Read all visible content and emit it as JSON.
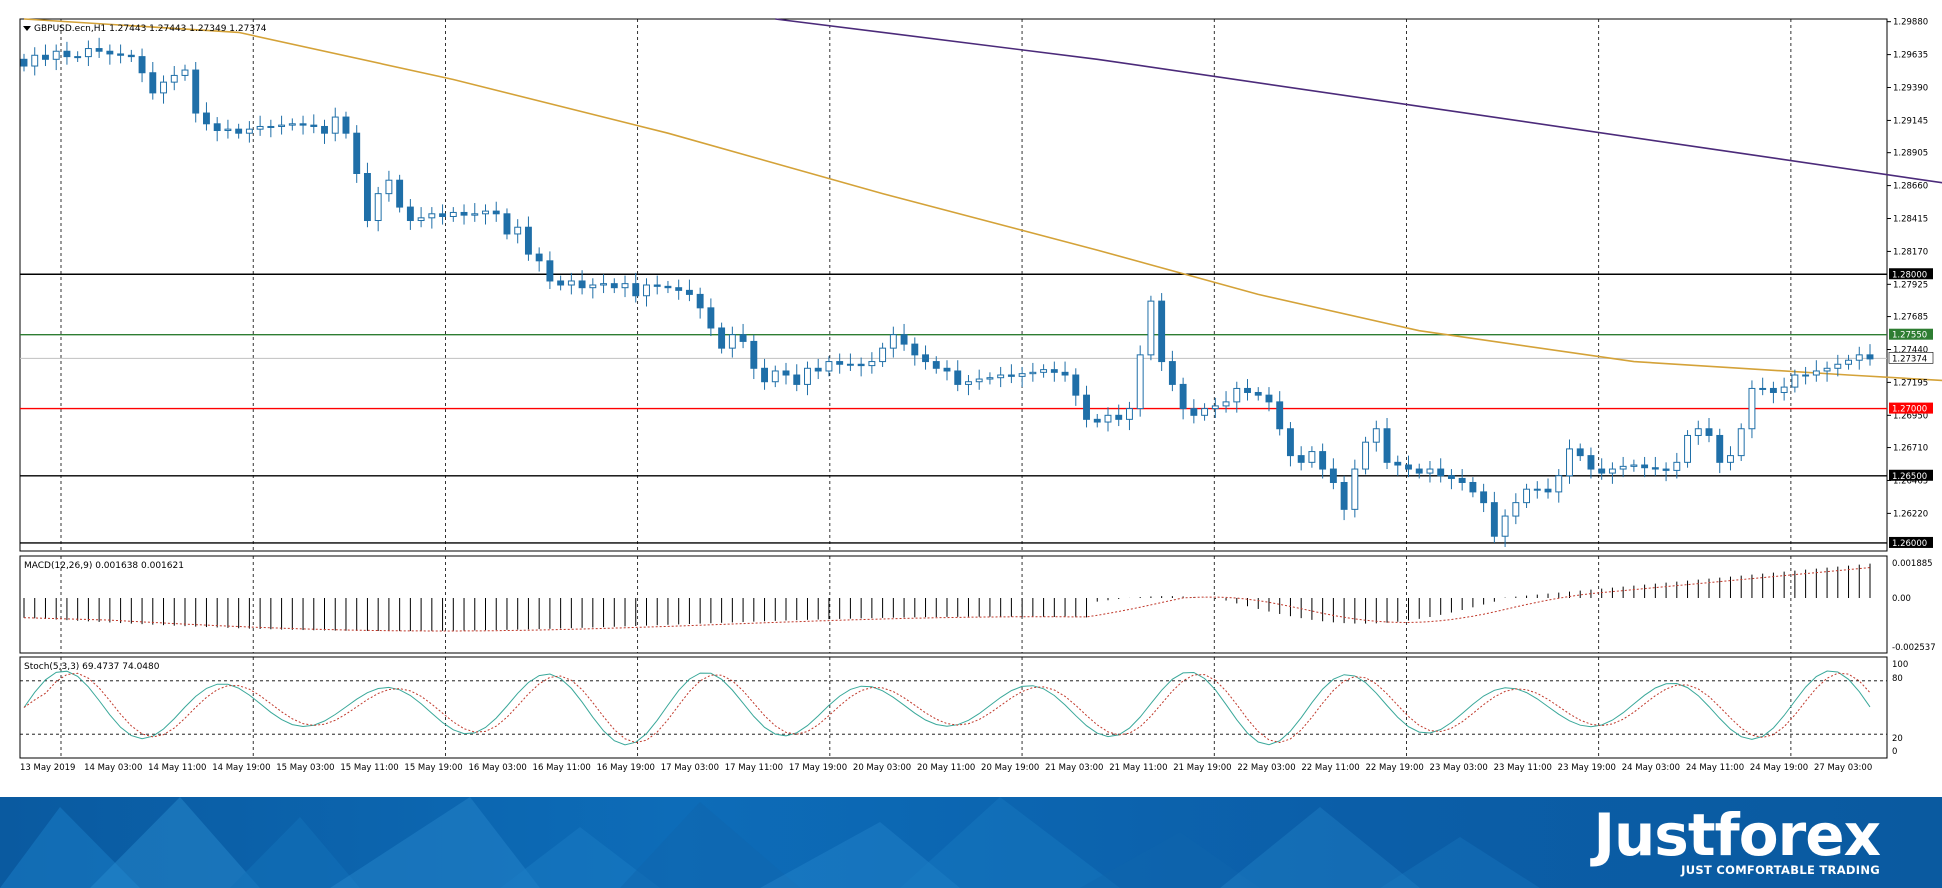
{
  "chart_data": [
    {
      "type": "candlestick",
      "symbol_line": "GBPUSD.ecn,H1  1.27443 1.27443 1.27349 1.27374",
      "ylim": [
        1.2594,
        1.299
      ],
      "y_ticks": [
        "1.29880",
        "1.29635",
        "1.29390",
        "1.29145",
        "1.28905",
        "1.28660",
        "1.28415",
        "1.28170",
        "1.27925",
        "1.27685",
        "1.27440",
        "1.27195",
        "1.26950",
        "1.26710",
        "1.26465",
        "1.26220"
      ],
      "y_tick_values": [
        1.2988,
        1.29635,
        1.2939,
        1.29145,
        1.28905,
        1.2866,
        1.28415,
        1.2817,
        1.27925,
        1.27685,
        1.2744,
        1.27195,
        1.2695,
        1.2671,
        1.26465,
        1.2622
      ],
      "horizontal_levels": [
        {
          "label": "1.28000",
          "value": 1.28,
          "color": "#000000",
          "badge_bg": "#000000"
        },
        {
          "label": "1.27550",
          "value": 1.2755,
          "color": "#2e7d32",
          "badge_bg": "#2e7d32"
        },
        {
          "label": "1.27000",
          "value": 1.27,
          "color": "#ff0000",
          "badge_bg": "#ff0000"
        },
        {
          "label": "1.26500",
          "value": 1.265,
          "color": "#000000",
          "badge_bg": "#000000"
        },
        {
          "label": "1.26000",
          "value": 1.26,
          "color": "#000000",
          "badge_bg": "#000000"
        }
      ],
      "current_price": {
        "label": "1.27374",
        "value": 1.27374
      },
      "candles_close": [
        1.2955,
        1.2963,
        1.296,
        1.2966,
        1.2962,
        1.2962,
        1.2968,
        1.2966,
        1.2964,
        1.2963,
        1.2962,
        1.295,
        1.2935,
        1.2943,
        1.2948,
        1.2952,
        1.292,
        1.2912,
        1.2907,
        1.2908,
        1.2905,
        1.2908,
        1.291,
        1.291,
        1.2911,
        1.2912,
        1.2911,
        1.291,
        1.2905,
        1.2917,
        1.2905,
        1.2875,
        1.284,
        1.286,
        1.287,
        1.285,
        1.284,
        1.2842,
        1.2845,
        1.2843,
        1.2846,
        1.2844,
        1.2845,
        1.2847,
        1.2845,
        1.283,
        1.2835,
        1.2815,
        1.281,
        1.2795,
        1.2792,
        1.2795,
        1.279,
        1.2792,
        1.2793,
        1.279,
        1.2793,
        1.2784,
        1.2792,
        1.2791,
        1.279,
        1.2788,
        1.2785,
        1.2775,
        1.276,
        1.2745,
        1.2755,
        1.275,
        1.273,
        1.272,
        1.2728,
        1.2725,
        1.2718,
        1.273,
        1.2728,
        1.2735,
        1.2733,
        1.2733,
        1.2732,
        1.2735,
        1.2745,
        1.2755,
        1.2748,
        1.274,
        1.2735,
        1.273,
        1.2728,
        1.2718,
        1.272,
        1.2722,
        1.2723,
        1.2725,
        1.2724,
        1.2726,
        1.2727,
        1.2729,
        1.2727,
        1.2725,
        1.271,
        1.2692,
        1.269,
        1.2695,
        1.2692,
        1.27,
        1.274,
        1.278,
        1.2735,
        1.2718,
        1.27,
        1.2695,
        1.27,
        1.2702,
        1.2705,
        1.2715,
        1.2712,
        1.271,
        1.2705,
        1.2685,
        1.2665,
        1.266,
        1.2668,
        1.2655,
        1.2645,
        1.2625,
        1.2655,
        1.2675,
        1.2685,
        1.266,
        1.2658,
        1.2655,
        1.2652,
        1.2655,
        1.265,
        1.2648,
        1.2645,
        1.2638,
        1.263,
        1.2605,
        1.262,
        1.263,
        1.264,
        1.264,
        1.2638,
        1.265,
        1.267,
        1.2665,
        1.2655,
        1.2652,
        1.2655,
        1.2657,
        1.2658,
        1.2656,
        1.2655,
        1.2654,
        1.266,
        1.268,
        1.2685,
        1.268,
        1.266,
        1.2665,
        1.2685,
        1.2715,
        1.2715,
        1.2712,
        1.2716,
        1.2725,
        1.2725,
        1.2728,
        1.273,
        1.2733,
        1.2736,
        1.274,
        1.2737
      ],
      "ma_fast": [
        [
          0,
          1.301
        ],
        [
          20,
          1.298
        ],
        [
          40,
          1.2945
        ],
        [
          60,
          1.2905
        ],
        [
          80,
          1.286
        ],
        [
          100,
          1.2818
        ],
        [
          115,
          1.2785
        ],
        [
          130,
          1.2758
        ],
        [
          150,
          1.2735
        ],
        [
          170,
          1.2725
        ],
        [
          185,
          1.2718
        ],
        [
          200,
          1.27
        ],
        [
          215,
          1.2682
        ],
        [
          230,
          1.2668
        ],
        [
          245,
          1.266
        ],
        [
          260,
          1.2655
        ],
        [
          270,
          1.2658
        ],
        [
          280,
          1.2665
        ],
        [
          292,
          1.2682
        ]
      ],
      "ma_slow": [
        [
          70,
          1.2995
        ],
        [
          100,
          1.296
        ],
        [
          130,
          1.2925
        ],
        [
          160,
          1.289
        ],
        [
          190,
          1.2855
        ],
        [
          220,
          1.282
        ],
        [
          250,
          1.2785
        ],
        [
          270,
          1.276
        ],
        [
          285,
          1.2743
        ],
        [
          292,
          1.2738
        ]
      ],
      "x_labels": [
        "13 May 2019",
        "14 May 03:00",
        "14 May 11:00",
        "14 May 19:00",
        "15 May 03:00",
        "15 May 11:00",
        "15 May 19:00",
        "16 May 03:00",
        "16 May 11:00",
        "16 May 19:00",
        "17 May 03:00",
        "17 May 11:00",
        "17 May 19:00",
        "20 May 03:00",
        "20 May 11:00",
        "20 May 19:00",
        "21 May 03:00",
        "21 May 11:00",
        "21 May 19:00",
        "22 May 03:00",
        "22 May 11:00",
        "22 May 19:00",
        "23 May 03:00",
        "23 May 11:00",
        "23 May 19:00",
        "24 May 03:00",
        "24 May 11:00",
        "24 May 19:00",
        "27 May 03:00"
      ]
    },
    {
      "type": "histogram",
      "title": "MACD(12,26,9) 0.001638 0.001621",
      "y_ticks": [
        "0.001885",
        "0.00",
        "-0.002537"
      ],
      "ylim": [
        -0.002537,
        0.001885
      ]
    },
    {
      "type": "line",
      "title": "Stoch(5,3,3) 69.4737 74.0480",
      "y_ticks": [
        "100",
        "80",
        "20",
        "0"
      ],
      "ylim": [
        0,
        100
      ]
    }
  ],
  "branding": {
    "name": "Justforex",
    "tagline": "JUST COMFORTABLE TRADING"
  },
  "colors": {
    "bull": "#ffffff",
    "bear": "#1f6fa8",
    "ma_fast": "#d4a238",
    "ma_slow": "#4b2a7a",
    "stoch_main": "#3aa89a",
    "stoch_signal": "#c0392b"
  }
}
